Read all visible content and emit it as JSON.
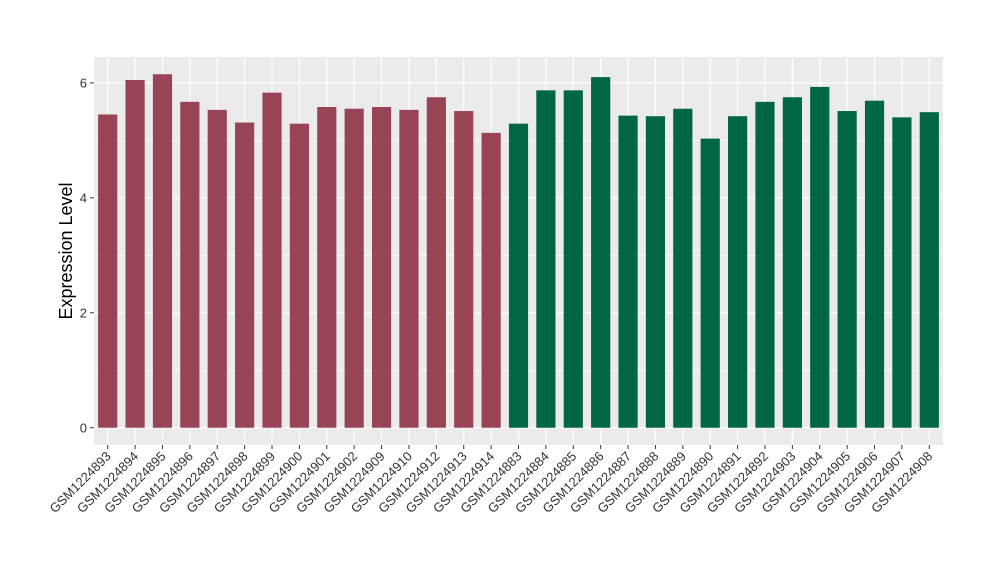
{
  "chart_data": {
    "type": "bar",
    "ylabel": "Expression Level",
    "xlabel": "",
    "ylim": [
      -0.3,
      6.45
    ],
    "yticks": [
      0,
      2,
      4,
      6
    ],
    "grid": true,
    "colors": {
      "group1": "#994455",
      "group2": "#006644",
      "panel": "#ebebeb",
      "grid": "#ffffff"
    },
    "categories": [
      "GSM1224893",
      "GSM1224894",
      "GSM1224895",
      "GSM1224896",
      "GSM1224897",
      "GSM1224898",
      "GSM1224899",
      "GSM1224900",
      "GSM1224901",
      "GSM1224902",
      "GSM1224909",
      "GSM1224910",
      "GSM1224912",
      "GSM1224913",
      "GSM1224914",
      "GSM1224883",
      "GSM1224884",
      "GSM1224885",
      "GSM1224886",
      "GSM1224887",
      "GSM1224888",
      "GSM1224889",
      "GSM1224890",
      "GSM1224891",
      "GSM1224892",
      "GSM1224903",
      "GSM1224904",
      "GSM1224905",
      "GSM1224906",
      "GSM1224907",
      "GSM1224908"
    ],
    "values": [
      5.45,
      6.05,
      6.15,
      5.67,
      5.53,
      5.31,
      5.83,
      5.29,
      5.58,
      5.55,
      5.58,
      5.53,
      5.75,
      5.51,
      5.13,
      5.29,
      5.87,
      5.87,
      6.1,
      5.43,
      5.42,
      5.55,
      5.03,
      5.42,
      5.67,
      5.75,
      5.93,
      5.51,
      5.69,
      5.4,
      5.49
    ],
    "groups": [
      "group1",
      "group1",
      "group1",
      "group1",
      "group1",
      "group1",
      "group1",
      "group1",
      "group1",
      "group1",
      "group1",
      "group1",
      "group1",
      "group1",
      "group1",
      "group2",
      "group2",
      "group2",
      "group2",
      "group2",
      "group2",
      "group2",
      "group2",
      "group2",
      "group2",
      "group2",
      "group2",
      "group2",
      "group2",
      "group2",
      "group2"
    ]
  }
}
